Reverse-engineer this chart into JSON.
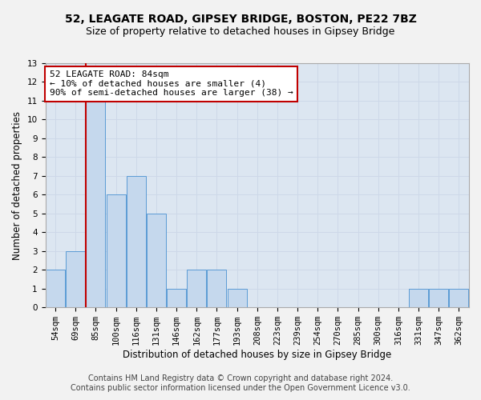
{
  "title": "52, LEAGATE ROAD, GIPSEY BRIDGE, BOSTON, PE22 7BZ",
  "subtitle": "Size of property relative to detached houses in Gipsey Bridge",
  "xlabel": "Distribution of detached houses by size in Gipsey Bridge",
  "ylabel": "Number of detached properties",
  "footer1": "Contains HM Land Registry data © Crown copyright and database right 2024.",
  "footer2": "Contains public sector information licensed under the Open Government Licence v3.0.",
  "categories": [
    "54sqm",
    "69sqm",
    "85sqm",
    "100sqm",
    "116sqm",
    "131sqm",
    "146sqm",
    "162sqm",
    "177sqm",
    "193sqm",
    "208sqm",
    "223sqm",
    "239sqm",
    "254sqm",
    "270sqm",
    "285sqm",
    "300sqm",
    "316sqm",
    "331sqm",
    "347sqm",
    "362sqm"
  ],
  "values": [
    2,
    3,
    11,
    6,
    7,
    5,
    1,
    2,
    2,
    1,
    0,
    0,
    0,
    0,
    0,
    0,
    0,
    0,
    1,
    1,
    1
  ],
  "bar_color": "#c5d8ed",
  "bar_edge_color": "#5b9bd5",
  "reference_line_color": "#c00000",
  "annotation_text": "52 LEAGATE ROAD: 84sqm\n← 10% of detached houses are smaller (4)\n90% of semi-detached houses are larger (38) →",
  "annotation_box_color": "#ffffff",
  "annotation_box_edge_color": "#c00000",
  "ylim": [
    0,
    13
  ],
  "yticks": [
    0,
    1,
    2,
    3,
    4,
    5,
    6,
    7,
    8,
    9,
    10,
    11,
    12,
    13
  ],
  "grid_color": "#cdd8e8",
  "bg_color": "#dce6f1",
  "fig_bg_color": "#f2f2f2",
  "title_fontsize": 10,
  "subtitle_fontsize": 9,
  "axis_label_fontsize": 8.5,
  "tick_fontsize": 7.5,
  "footer_fontsize": 7,
  "annotation_fontsize": 8
}
